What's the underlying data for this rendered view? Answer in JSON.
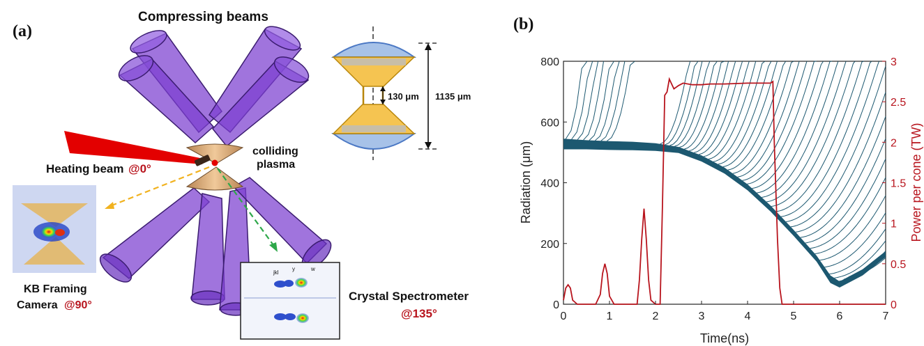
{
  "panel_a": {
    "label": "(a)",
    "title": "Compressing beams",
    "colliding_line1": "colliding",
    "colliding_line2": "plasma",
    "heating_label": "Heating beam",
    "heating_angle": "@0°",
    "kb_line1": "KB Framing",
    "kb_line2": "Camera",
    "kb_angle": "@90°",
    "crystal_line1": "Crystal Spectrometer",
    "crystal_angle": "@135°",
    "inset_gap": "130 μm",
    "inset_total": "1135 μm",
    "spectrum_lines": [
      "jkl",
      "y",
      "w"
    ],
    "colors": {
      "beam": "#7b3fd0",
      "cone": "#d9a468",
      "heating_beam": "#e30000",
      "accent_text": "#b8141d",
      "inset_gold": "#f5c451",
      "inset_blue": "#7da2d6"
    }
  },
  "panel_b": {
    "label": "(b)",
    "chart_data": {
      "type": "line",
      "xlabel": "Time(ns)",
      "ylabel_left": "Radiation (μm)",
      "ylabel_right": "Power per cone (TW)",
      "xlim": [
        0,
        7
      ],
      "ylim_left": [
        0,
        800
      ],
      "ylim_right": [
        0,
        3
      ],
      "x_ticks": [
        "0",
        "1",
        "2",
        "3",
        "4",
        "5",
        "6",
        "7"
      ],
      "y_ticks_left": [
        "0",
        "200",
        "400",
        "600",
        "800"
      ],
      "y_ticks_right": [
        "0",
        "0.5",
        "1",
        "1.5",
        "2",
        "2.5",
        "3"
      ],
      "colors": {
        "radiation": "#1c5870",
        "power": "#b8141d"
      },
      "power_series": {
        "x": [
          0,
          0.05,
          0.1,
          0.15,
          0.2,
          0.3,
          0.4,
          0.7,
          0.8,
          0.85,
          0.9,
          0.95,
          1.0,
          1.1,
          1.2,
          1.6,
          1.65,
          1.7,
          1.75,
          1.8,
          1.85,
          1.9,
          2.0,
          2.1,
          2.15,
          2.2,
          2.25,
          2.3,
          2.35,
          2.4,
          2.5,
          2.6,
          2.8,
          3.0,
          3.2,
          3.5,
          4.0,
          4.5,
          4.55,
          4.58,
          4.65,
          4.7,
          4.75,
          7.0
        ],
        "y": [
          0.05,
          0.2,
          0.24,
          0.2,
          0.05,
          0,
          0,
          0,
          0.12,
          0.38,
          0.5,
          0.38,
          0.1,
          0,
          0,
          0,
          0.3,
          0.8,
          1.18,
          0.8,
          0.3,
          0.05,
          0,
          0,
          1.2,
          2.58,
          2.62,
          2.78,
          2.72,
          2.66,
          2.7,
          2.73,
          2.71,
          2.71,
          2.72,
          2.72,
          2.73,
          2.73,
          2.75,
          2.0,
          0.8,
          0.2,
          0,
          0
        ]
      },
      "radiation_bulk": {
        "x": [
          0,
          0.5,
          1.0,
          1.5,
          2.0,
          2.5,
          3.0,
          3.5,
          4.0,
          4.5,
          5.0,
          5.5,
          5.8,
          6.0,
          6.5,
          7.0
        ],
        "upper": [
          545,
          540,
          537,
          535,
          530,
          518,
          490,
          450,
          395,
          325,
          245,
          160,
          95,
          75,
          115,
          175
        ],
        "lower": [
          510,
          510,
          508,
          507,
          505,
          498,
          470,
          430,
          375,
          305,
          225,
          140,
          70,
          55,
          95,
          155
        ]
      },
      "radiation_escape_curves": 48
    }
  }
}
